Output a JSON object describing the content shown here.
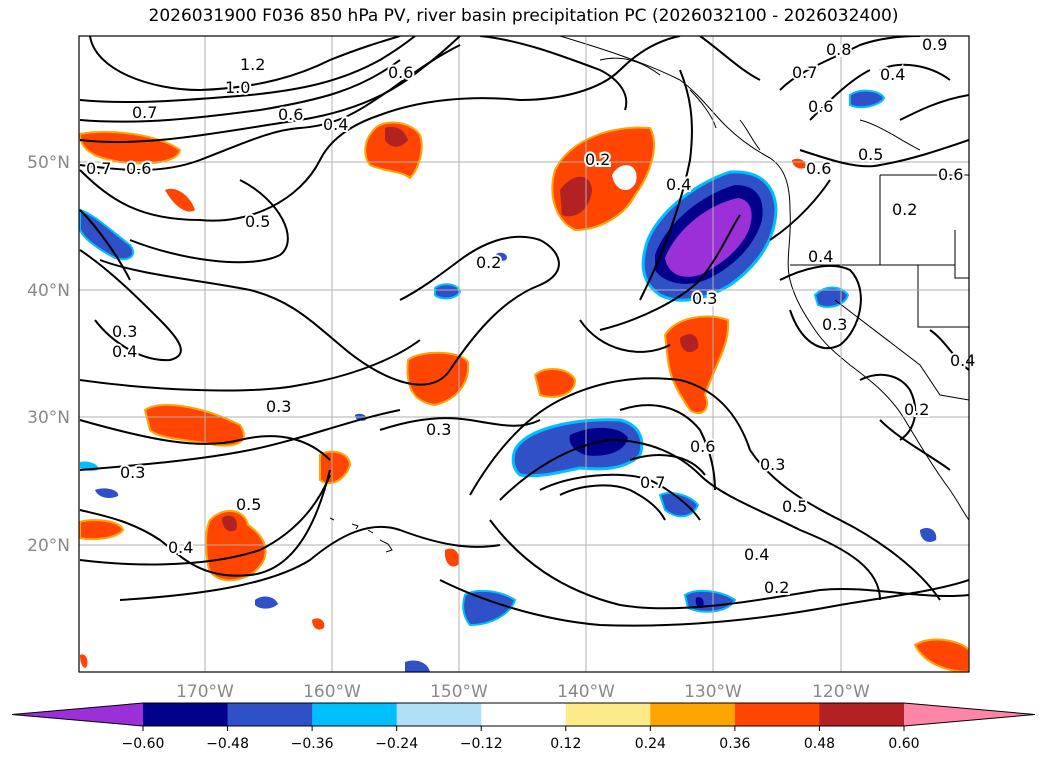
{
  "title": "2026031900 F036 850 hPa PV, river basin precipitation PC (2026032100 - 2026032400)",
  "lon_labels": [
    "170°W",
    "160°W",
    "150°W",
    "140°W",
    "130°W",
    "120°W"
  ],
  "lat_labels": [
    "50°N",
    "40°N",
    "30°N",
    "20°N"
  ],
  "colorbar": {
    "ticks": [
      "−0.60",
      "−0.48",
      "−0.36",
      "−0.24",
      "−0.12",
      "0.12",
      "0.24",
      "0.36",
      "0.48",
      "0.60"
    ],
    "colors": [
      "#9b30d8",
      "#00008b",
      "#3050c8",
      "#00bfff",
      "#b0e0f8",
      "#ffffff",
      "#fdeb8a",
      "#ffa500",
      "#ff4500",
      "#b22222",
      "#ff85a8"
    ]
  },
  "contour_labels": [
    "1.2",
    "1.0",
    "0.7",
    "0.6",
    "0.7",
    "0.6",
    "0.4",
    "0.5",
    "0.2",
    "0.2",
    "0.4",
    "0.3",
    "0.3",
    "0.4",
    "0.3",
    "0.3",
    "0.3",
    "0.5",
    "0.4",
    "0.6",
    "0.7",
    "0.6",
    "0.5",
    "0.4",
    "0.2",
    "0.3",
    "0.7",
    "0.8",
    "0.9",
    "0.4",
    "0.6",
    "0.5",
    "0.6",
    "0.6",
    "0.2",
    "0.4",
    "0.3",
    "0.4",
    "0.2"
  ]
}
